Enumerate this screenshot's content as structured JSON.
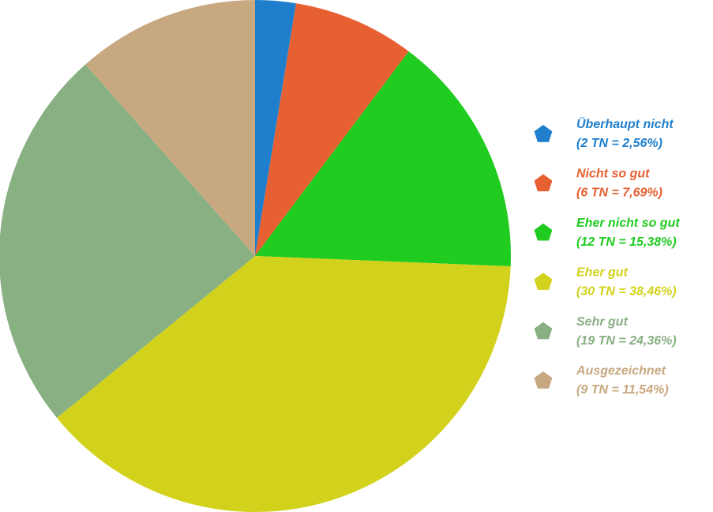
{
  "chart_data": {
    "type": "pie",
    "categories": [
      "Überhaupt nicht",
      "Nicht so gut",
      "Eher nicht so gut",
      "Eher gut",
      "Sehr gut",
      "Ausgezeichnet"
    ],
    "values": [
      2,
      6,
      12,
      30,
      19,
      9
    ],
    "value_labels": [
      "(2 TN = 2,56%)",
      "(6 TN = 7,69%)",
      "(12 TN = 15,38%)",
      "(30 TN = 38,46%)",
      "(19 TN = 24,36%)",
      "(9 TN = 11,54%)"
    ],
    "colors": [
      "#1f7fcd",
      "#e66032",
      "#20cc20",
      "#d2d21c",
      "#88b082",
      "#c8a880"
    ],
    "legend": "right"
  }
}
